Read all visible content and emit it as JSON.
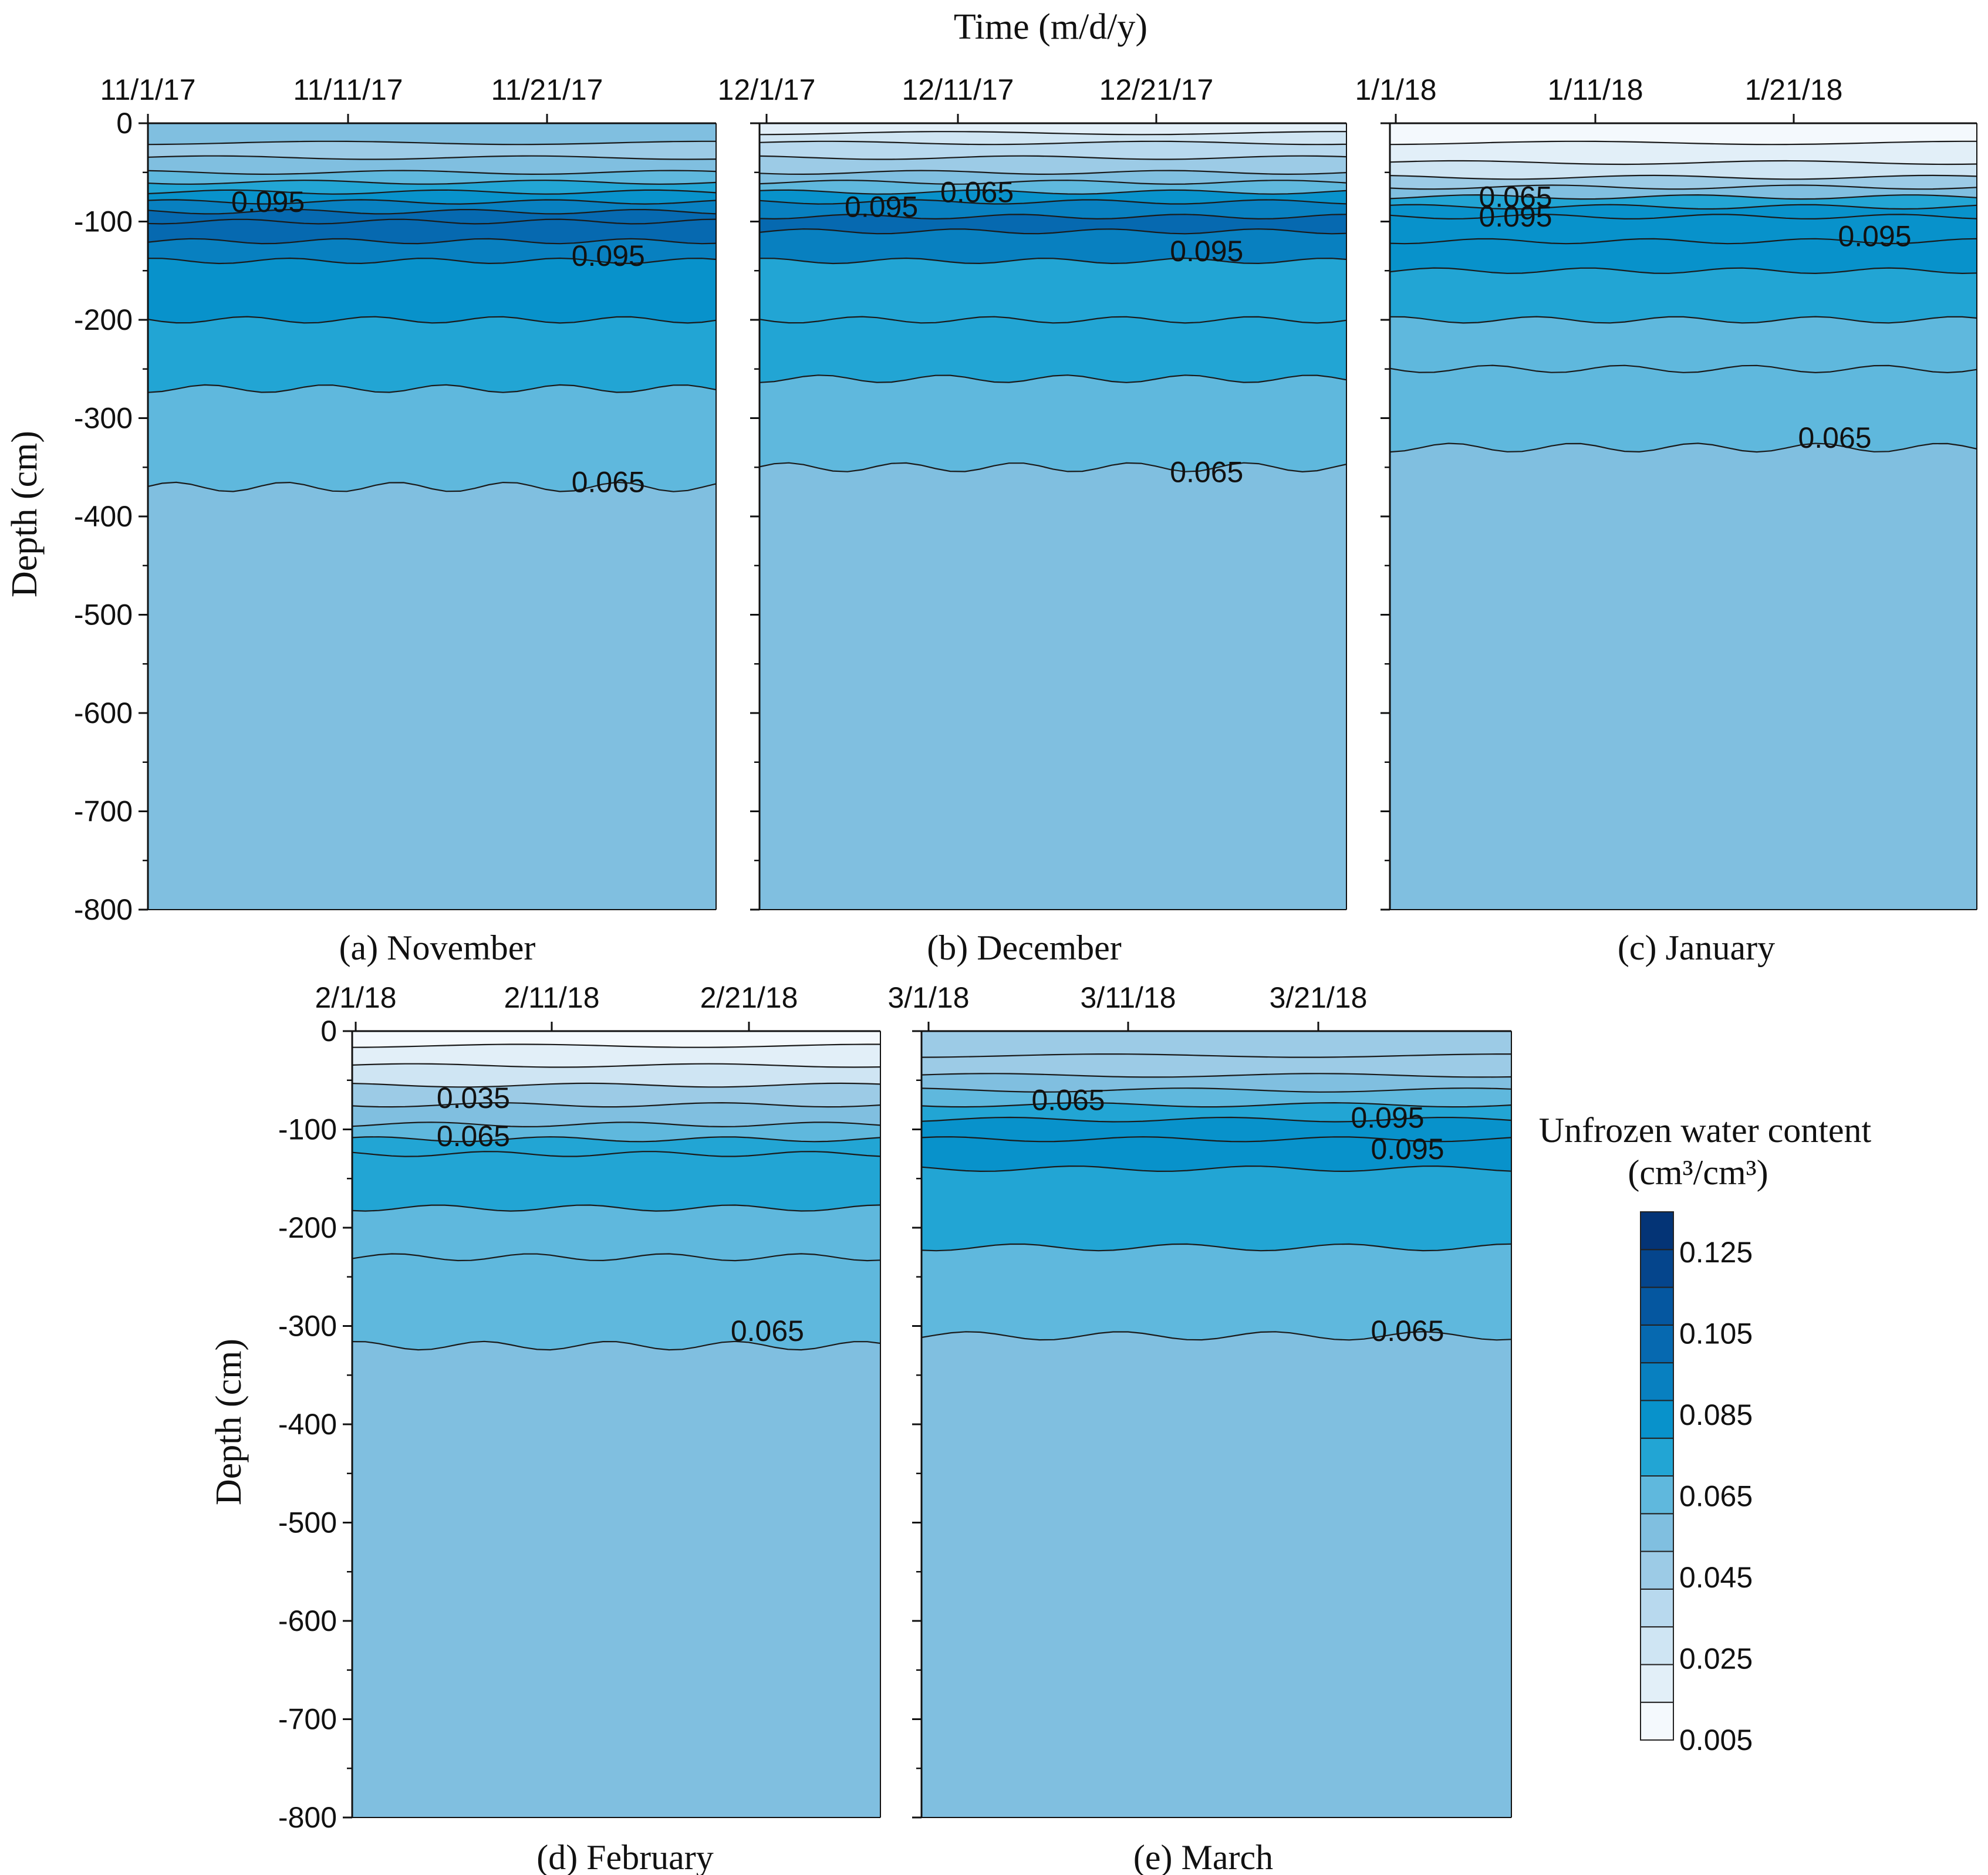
{
  "figure": {
    "time_axis_title": "Time (m/d/y)",
    "depth_axis_title": "Depth (cm)",
    "colorbar_title_line1": "Unfrozen water content",
    "colorbar_title_line2": "(cm³/cm³)"
  },
  "colors": {
    "levels": [
      0.005,
      0.015,
      0.025,
      0.035,
      0.045,
      0.055,
      0.065,
      0.075,
      0.085,
      0.095,
      0.105,
      0.115,
      0.125,
      0.135
    ],
    "fills": [
      "#f4f9fd",
      "#e2eff8",
      "#cfe5f3",
      "#b8d9ee",
      "#9ccbe6",
      "#80bfe0",
      "#5fb8dd",
      "#22a5d4",
      "#0892cb",
      "#0880c0",
      "#0669b0",
      "#0557a0",
      "#05458c",
      "#043476"
    ],
    "contour_line": "#1a1a1a"
  },
  "chart_data": [
    {
      "type": "contour",
      "title": "(a) November",
      "xticks": [
        "11/1/17",
        "11/11/17",
        "11/21/17"
      ],
      "yticks": [
        "0",
        "-100",
        "-200",
        "-300",
        "-400",
        "-500",
        "-600",
        "-700",
        "-800"
      ],
      "ylim": [
        -800,
        0
      ],
      "xlim": [
        "11/1/17",
        "11/30/17"
      ],
      "contour_labels": [
        "0.095",
        "0.095",
        "0.065"
      ],
      "label_depths": [
        -80,
        -135,
        -365
      ],
      "label_days": [
        6,
        23,
        23
      ],
      "profile_depths": [
        0,
        -20,
        -35,
        -50,
        -60,
        -70,
        -80,
        -90,
        -100,
        -120,
        -140,
        -200,
        -270,
        -370,
        -800
      ],
      "profile_values": [
        0.06,
        0.055,
        0.05,
        0.06,
        0.075,
        0.085,
        0.095,
        0.11,
        0.12,
        0.105,
        0.092,
        0.08,
        0.07,
        0.062,
        0.062
      ]
    },
    {
      "type": "contour",
      "title": "(b) December",
      "xticks": [
        "12/1/17",
        "12/11/17",
        "12/21/17"
      ],
      "yticks": [
        "0",
        "-100",
        "-200",
        "-300",
        "-400",
        "-500",
        "-600",
        "-700",
        "-800"
      ],
      "ylim": [
        -800,
        0
      ],
      "xlim": [
        "12/1/17",
        "12/31/17"
      ],
      "contour_labels": [
        "0.095",
        "0.065",
        "0.095",
        "0.065"
      ],
      "label_depths": [
        -85,
        -70,
        -130,
        -355
      ],
      "label_days": [
        6,
        11,
        23,
        23
      ],
      "profile_depths": [
        0,
        -10,
        -20,
        -35,
        -50,
        -60,
        -70,
        -80,
        -95,
        -110,
        -140,
        -200,
        -260,
        -350,
        -800
      ],
      "profile_values": [
        0.01,
        0.02,
        0.03,
        0.04,
        0.05,
        0.065,
        0.08,
        0.095,
        0.11,
        0.1,
        0.09,
        0.08,
        0.07,
        0.062,
        0.062
      ]
    },
    {
      "type": "contour",
      "title": "(c) January",
      "xticks": [
        "1/1/18",
        "1/11/18",
        "1/21/18"
      ],
      "yticks": [
        "0",
        "-100",
        "-200",
        "-300",
        "-400",
        "-500",
        "-600",
        "-700",
        "-800"
      ],
      "ylim": [
        -800,
        0
      ],
      "xlim": [
        "1/1/18",
        "1/30/18"
      ],
      "contour_labels": [
        "0.065",
        "0.095",
        "0.095",
        "0.065"
      ],
      "label_depths": [
        -75,
        -95,
        -115,
        -320
      ],
      "label_days": [
        6,
        6,
        24,
        22
      ],
      "profile_depths": [
        0,
        -20,
        -40,
        -55,
        -65,
        -75,
        -85,
        -95,
        -120,
        -150,
        -200,
        -250,
        -330,
        -800
      ],
      "profile_values": [
        0.01,
        0.015,
        0.025,
        0.04,
        0.055,
        0.07,
        0.085,
        0.095,
        0.09,
        0.083,
        0.075,
        0.068,
        0.062,
        0.062
      ]
    },
    {
      "type": "contour",
      "title": "(d) February",
      "xticks": [
        "2/1/18",
        "2/11/18",
        "2/21/18"
      ],
      "yticks": [
        "0",
        "-100",
        "-200",
        "-300",
        "-400",
        "-500",
        "-600",
        "-700",
        "-800"
      ],
      "ylim": [
        -800,
        0
      ],
      "xlim": [
        "2/1/18",
        "2/28/18"
      ],
      "contour_labels": [
        "0.035",
        "0.065",
        "0.065"
      ],
      "label_depths": [
        -68,
        -107,
        -305
      ],
      "label_days": [
        6,
        6,
        21
      ],
      "profile_depths": [
        0,
        -15,
        -35,
        -55,
        -75,
        -95,
        -110,
        -125,
        -180,
        -230,
        -320,
        -800
      ],
      "profile_values": [
        0.008,
        0.012,
        0.025,
        0.038,
        0.052,
        0.065,
        0.075,
        0.085,
        0.078,
        0.07,
        0.062,
        0.062
      ]
    },
    {
      "type": "contour",
      "title": "(e) March",
      "xticks": [
        "3/1/18",
        "3/11/18",
        "3/21/18"
      ],
      "yticks": [
        "0",
        "-100",
        "-200",
        "-300",
        "-400",
        "-500",
        "-600",
        "-700",
        "-800"
      ],
      "ylim": [
        -800,
        0
      ],
      "xlim": [
        "3/1/18",
        "3/31/18"
      ],
      "contour_labels": [
        "0.065",
        "0.095",
        "0.095",
        "0.065"
      ],
      "label_depths": [
        -70,
        -88,
        -120,
        -305
      ],
      "label_days": [
        7,
        23,
        24,
        24
      ],
      "profile_depths": [
        0,
        -25,
        -45,
        -60,
        -75,
        -90,
        -110,
        -140,
        -220,
        -310,
        -800
      ],
      "profile_values": [
        0.055,
        0.05,
        0.055,
        0.065,
        0.078,
        0.088,
        0.098,
        0.09,
        0.075,
        0.065,
        0.062
      ]
    }
  ],
  "colorbar": {
    "tick_labels": [
      "0.125",
      "0.105",
      "0.085",
      "0.065",
      "0.045",
      "0.025",
      "0.005"
    ]
  }
}
